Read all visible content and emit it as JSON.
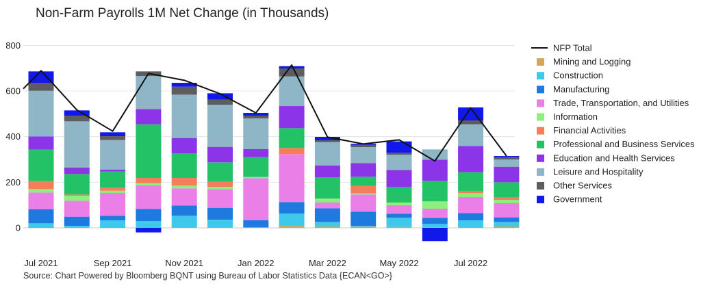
{
  "page": {
    "title": "Non-Farm Payrolls 1M Net Change (in Thousands)",
    "source": "Source: Chart Powered by Bloomberg BQNT using Bureau of Labor Statistics Data   {ECAN<GO>}"
  },
  "chart_data": {
    "type": "bar",
    "stacked": true,
    "title": "Non-Farm Payrolls 1M Net Change (in Thousands)",
    "ylim": [
      -60,
      820
    ],
    "yticks": [
      0,
      200,
      400,
      600,
      800
    ],
    "grid": true,
    "legend_position": "right",
    "months": [
      "2021-07",
      "2021-08",
      "2021-09",
      "2021-10",
      "2021-11",
      "2021-12",
      "2022-01",
      "2022-02",
      "2022-03",
      "2022-04",
      "2022-05",
      "2022-06",
      "2022-07",
      "2022-08"
    ],
    "x_tick_labels": [
      "Jul 2021",
      "Sep 2021",
      "Nov 2021",
      "Jan 2022",
      "Mar 2022",
      "May 2022",
      "Jul 2022"
    ],
    "x_tick_months": [
      "2021-07",
      "2021-09",
      "2021-11",
      "2022-01",
      "2022-03",
      "2022-05",
      "2022-07"
    ],
    "line": {
      "name": "NFP Total",
      "color": "#111111",
      "values": [
        689,
        517,
        424,
        677,
        647,
        588,
        504,
        714,
        398,
        368,
        386,
        293,
        526,
        315
      ]
    },
    "series": [
      {
        "name": "Mining and Logging",
        "color": "#d9a45a",
        "values": [
          0,
          3,
          0,
          0,
          3,
          3,
          0,
          8,
          6,
          5,
          4,
          3,
          3,
          6
        ]
      },
      {
        "name": "Construction",
        "color": "#3ec8ea",
        "values": [
          20,
          6,
          33,
          30,
          50,
          33,
          3,
          55,
          20,
          3,
          40,
          14,
          30,
          20
        ]
      },
      {
        "name": "Manufacturing",
        "color": "#1f7ae0",
        "values": [
          62,
          40,
          20,
          53,
          45,
          52,
          30,
          50,
          60,
          63,
          18,
          27,
          32,
          20
        ]
      },
      {
        "name": "Trade, Transportation, and Utilities",
        "color": "#ea7fe8",
        "values": [
          73,
          70,
          100,
          103,
          75,
          80,
          185,
          210,
          25,
          75,
          37,
          40,
          70,
          62
        ]
      },
      {
        "name": "Information",
        "color": "#8ef07c",
        "values": [
          15,
          22,
          10,
          10,
          13,
          12,
          5,
          0,
          17,
          5,
          12,
          32,
          17,
          15
        ]
      },
      {
        "name": "Financial Activities",
        "color": "#f27e5a",
        "values": [
          35,
          5,
          12,
          23,
          33,
          22,
          0,
          27,
          0,
          33,
          0,
          0,
          10,
          10
        ]
      },
      {
        "name": "Professional and Business Services",
        "color": "#24c266",
        "values": [
          138,
          90,
          72,
          235,
          107,
          85,
          87,
          87,
          93,
          40,
          68,
          90,
          82,
          67
        ]
      },
      {
        "name": "Education and Health Services",
        "color": "#8c35e8",
        "values": [
          58,
          28,
          8,
          67,
          68,
          68,
          35,
          97,
          52,
          60,
          75,
          93,
          115,
          68
        ]
      },
      {
        "name": "Leisure and Hospitality",
        "color": "#8fb6c6",
        "values": [
          200,
          203,
          130,
          145,
          190,
          185,
          135,
          130,
          103,
          70,
          67,
          45,
          95,
          32
        ]
      },
      {
        "name": "Other Services",
        "color": "#5d5d5f",
        "values": [
          35,
          25,
          17,
          20,
          35,
          22,
          12,
          35,
          8,
          10,
          8,
          0,
          17,
          10
        ]
      },
      {
        "name": "Government",
        "color": "#1018ea",
        "values": [
          50,
          23,
          17,
          5,
          17,
          28,
          12,
          10,
          15,
          5,
          50,
          0,
          57,
          5
        ]
      }
    ],
    "negatives": [
      {
        "series": "Government",
        "month": "2021-10",
        "value": -20
      },
      {
        "series": "Government",
        "month": "2022-06",
        "value": -58
      }
    ]
  }
}
